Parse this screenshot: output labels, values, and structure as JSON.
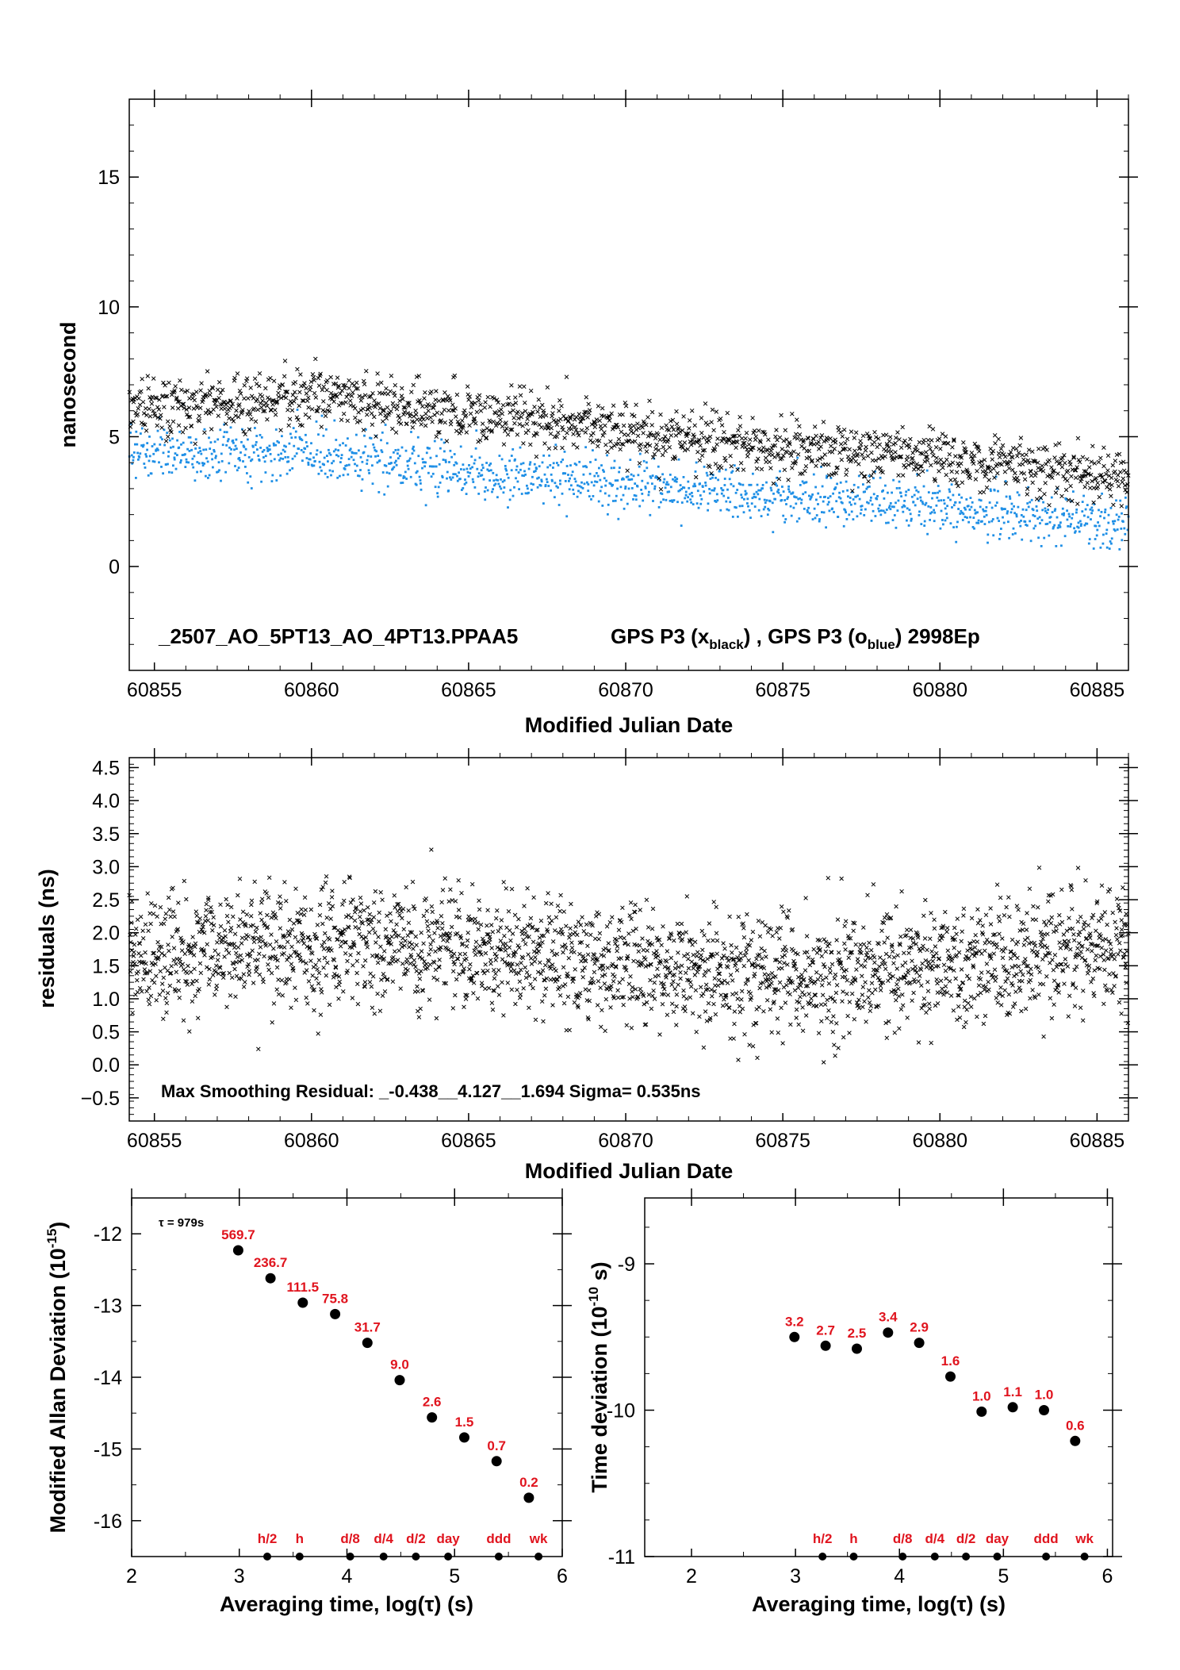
{
  "chart_data": [
    {
      "type": "scatter",
      "id": "time-series",
      "xlabel": "Modified Julian Date",
      "ylabel": "nanosecond",
      "xlim": [
        60854.2,
        60886.0
      ],
      "ylim": [
        -4,
        18
      ],
      "xticks": [
        60855,
        60860,
        60865,
        60870,
        60875,
        60880,
        60885
      ],
      "yticks": [
        0,
        5,
        10,
        15
      ],
      "annotation": {
        "name": "_2507_AO_5PT13_AO_4PT13.PPAA5",
        "legend_prefix": "GPS P3 (x",
        "legend_sub1": "black",
        "legend_mid": ") ,  GPS P3 (o",
        "legend_sub2": "blue",
        "legend_suffix": ")  2998Ep"
      },
      "series": [
        {
          "marker": "x",
          "color": "#000000",
          "trend": [
            [
              60854.2,
              6.1
            ],
            [
              60860,
              6.5
            ],
            [
              60865,
              5.9
            ],
            [
              60870,
              5.2
            ],
            [
              60875,
              4.6
            ],
            [
              60880,
              4.2
            ],
            [
              60886,
              3.4
            ]
          ],
          "spread_ns": 0.55
        },
        {
          "marker": "o",
          "color": "#1e8fe6",
          "trend": [
            [
              60854.2,
              4.4
            ],
            [
              60860,
              4.3
            ],
            [
              60865,
              3.7
            ],
            [
              60870,
              3.2
            ],
            [
              60875,
              2.7
            ],
            [
              60880,
              2.3
            ],
            [
              60886,
              1.6
            ]
          ],
          "spread_ns": 0.5
        }
      ]
    },
    {
      "type": "scatter",
      "id": "residuals",
      "xlabel": "Modified Julian Date",
      "ylabel": "residuals (ns)",
      "xlim": [
        60854.2,
        60886.0
      ],
      "ylim": [
        -0.85,
        4.65
      ],
      "xticks": [
        60855,
        60860,
        60865,
        60870,
        60875,
        60880,
        60885
      ],
      "yticks": [
        -0.5,
        0.0,
        0.5,
        1.0,
        1.5,
        2.0,
        2.5,
        3.0,
        3.5,
        4.0,
        4.5
      ],
      "ytick_labels": [
        "−0.5",
        "0.0",
        "0.5",
        "1.0",
        "1.5",
        "2.0",
        "2.5",
        "3.0",
        "3.5",
        "4.0",
        "4.5"
      ],
      "annotation": "Max Smoothing Residual: _-0.438__4.127__1.694  Sigma= 0.535ns",
      "series": [
        {
          "marker": "x",
          "color": "#000000",
          "mean": 1.6,
          "sigma": 0.535,
          "min": -0.438,
          "max": 4.127
        }
      ]
    },
    {
      "type": "scatter",
      "id": "mdev",
      "xlabel": "Averaging time, log(τ) (s)",
      "ylabel_pre": "Modified Allan Deviation (10",
      "ylabel_sup": "-15",
      "ylabel_post": ")",
      "xlim": [
        2,
        6
      ],
      "ylim": [
        -16.5,
        -11.5
      ],
      "xticks": [
        2,
        3,
        4,
        5,
        6
      ],
      "yticks": [
        -16,
        -15,
        -14,
        -13,
        -12
      ],
      "tau_note": "τ = 979s",
      "x": [
        2.99,
        3.29,
        3.59,
        3.89,
        4.19,
        4.49,
        4.79,
        5.09,
        5.39,
        5.69
      ],
      "y": [
        -12.23,
        -12.62,
        -12.96,
        -13.12,
        -13.52,
        -14.04,
        -14.56,
        -14.84,
        -15.17,
        -15.68
      ],
      "labels": [
        "569.7",
        "236.7",
        "111.5",
        "75.8",
        "31.7",
        "9.0",
        "2.6",
        "1.5",
        "0.7",
        "0.2"
      ],
      "markers_x": [
        3.26,
        3.56,
        4.03,
        4.34,
        4.64,
        4.94,
        5.41,
        5.78
      ],
      "markers": [
        "h/2",
        "h",
        "d/8",
        "d/4",
        "d/2",
        "day",
        "ddd",
        "wk"
      ]
    },
    {
      "type": "scatter",
      "id": "tdev",
      "xlabel": "Averaging time, log(τ) (s)",
      "ylabel_pre": "Time deviation (10",
      "ylabel_sup": "-10",
      "ylabel_post": " s)",
      "xlim": [
        1.55,
        6.05
      ],
      "ylim": [
        -11,
        -8.55
      ],
      "xticks": [
        2,
        3,
        4,
        5,
        6
      ],
      "yticks": [
        -11,
        -10,
        -9
      ],
      "x": [
        2.99,
        3.29,
        3.59,
        3.89,
        4.19,
        4.49,
        4.79,
        5.09,
        5.39,
        5.69
      ],
      "y": [
        -9.5,
        -9.56,
        -9.58,
        -9.47,
        -9.54,
        -9.77,
        -10.01,
        -9.98,
        -10.0,
        -10.21
      ],
      "labels": [
        "3.2",
        "2.7",
        "2.5",
        "3.4",
        "2.9",
        "1.6",
        "1.0",
        "1.1",
        "1.0",
        "0.6"
      ],
      "markers_x": [
        3.26,
        3.56,
        4.03,
        4.34,
        4.64,
        4.94,
        5.41,
        5.78
      ],
      "markers": [
        "h/2",
        "h",
        "d/8",
        "d/4",
        "d/2",
        "day",
        "ddd",
        "wk"
      ]
    }
  ]
}
